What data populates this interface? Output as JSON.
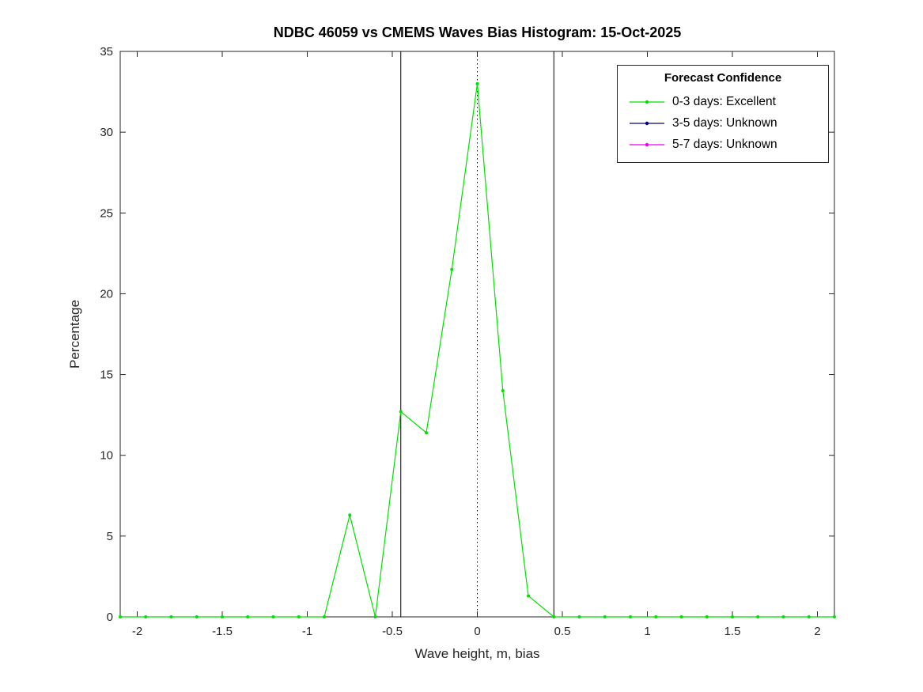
{
  "chart_data": {
    "type": "line",
    "title": "NDBC 46059 vs CMEMS Waves Bias Histogram: 15-Oct-2025",
    "xlabel": "Wave height, m, bias",
    "ylabel": "Percentage",
    "xlim": [
      -2.1,
      2.1
    ],
    "ylim": [
      0,
      35
    ],
    "xticks": [
      -2,
      -1.5,
      -1,
      -0.5,
      0,
      0.5,
      1,
      1.5,
      2
    ],
    "yticks": [
      0,
      5,
      10,
      15,
      20,
      25,
      30,
      35
    ],
    "grid": false,
    "box": true,
    "vlines": [
      {
        "x": -0.45,
        "style": "solid",
        "color": "#000000"
      },
      {
        "x": 0,
        "style": "dotted",
        "color": "#000000"
      },
      {
        "x": 0.45,
        "style": "solid",
        "color": "#000000"
      }
    ],
    "series": [
      {
        "name": "0-3 days: Excellent",
        "color": "#00e100",
        "marker": "dot",
        "x": [
          -2.1,
          -1.95,
          -1.8,
          -1.65,
          -1.5,
          -1.35,
          -1.2,
          -1.05,
          -0.9,
          -0.75,
          -0.6,
          -0.45,
          -0.3,
          -0.15,
          0,
          0.15,
          0.3,
          0.45,
          0.6,
          0.75,
          0.9,
          1.05,
          1.2,
          1.35,
          1.5,
          1.65,
          1.8,
          1.95,
          2.1
        ],
        "y": [
          0,
          0,
          0,
          0,
          0,
          0,
          0,
          0,
          0,
          6.3,
          0,
          12.7,
          11.4,
          21.5,
          33,
          14,
          1.3,
          0,
          0,
          0,
          0,
          0,
          0,
          0,
          0,
          0,
          0,
          0,
          0
        ]
      },
      {
        "name": "3-5 days: Unknown",
        "color": "#00008b",
        "marker": "dot",
        "x": [],
        "y": []
      },
      {
        "name": "5-7 days: Unknown",
        "color": "#f000f0",
        "marker": "dot",
        "x": [],
        "y": []
      }
    ],
    "legend": {
      "title": "Forecast Confidence",
      "position": "top-right"
    }
  }
}
